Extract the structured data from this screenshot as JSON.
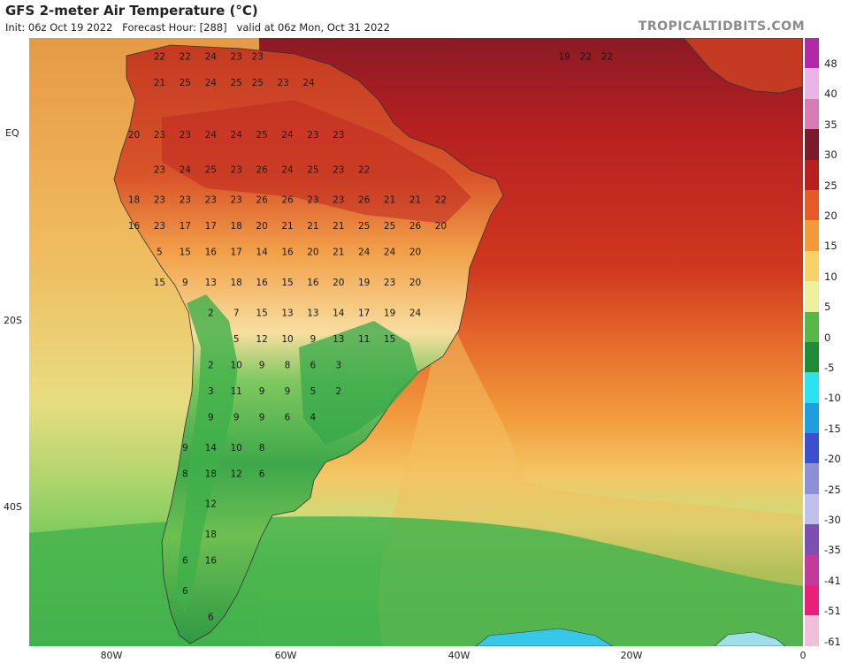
{
  "header": {
    "title": "GFS 2-meter Air Temperature (°C)",
    "subtitle": "Init: 06z Oct 19 2022   Forecast Hour: [288]   valid at 06z Mon, Oct 31 2022",
    "brand": "TROPICALTIDBITS.COM"
  },
  "axes": {
    "latitude_labels": [
      "EQ",
      "20S",
      "40S"
    ],
    "longitude_labels": [
      "80W",
      "60W",
      "40W",
      "20W",
      "0"
    ]
  },
  "colorbar": {
    "unit": "°C",
    "labels": [
      "48",
      "40",
      "35",
      "30",
      "25",
      "20",
      "15",
      "10",
      "5",
      "0",
      "-5",
      "-10",
      "-15",
      "-20",
      "-25",
      "-30",
      "-35",
      "-41",
      "-51",
      "-61"
    ],
    "colors": [
      "#b02aa8",
      "#e8b6e6",
      "#d77cb4",
      "#7a1a2a",
      "#b82020",
      "#e55a25",
      "#f39a3a",
      "#f6d26a",
      "#eef0a0",
      "#56b84a",
      "#1f8c3a",
      "#2be3f0",
      "#1e9ee0",
      "#3b4fcf",
      "#8f8fd8",
      "#c0c0ec",
      "#7d4fb0",
      "#c33a9a",
      "#e8207a",
      "#f0c0d8"
    ]
  },
  "chart_data": {
    "type": "map",
    "variable": "2-meter air temperature",
    "units": "°C",
    "station_values": [
      {
        "lon": -75.5,
        "lat": 10.5,
        "value": 22
      },
      {
        "lon": -72.5,
        "lat": 10.5,
        "value": 22
      },
      {
        "lon": -69.5,
        "lat": 10.5,
        "value": 24
      },
      {
        "lon": -66.5,
        "lat": 10.5,
        "value": 23
      },
      {
        "lon": -64,
        "lat": 10.5,
        "value": 23
      },
      {
        "lon": -75.5,
        "lat": 7.5,
        "value": 21
      },
      {
        "lon": -72.5,
        "lat": 7.5,
        "value": 25
      },
      {
        "lon": -69.5,
        "lat": 7.5,
        "value": 24
      },
      {
        "lon": -66.5,
        "lat": 7.5,
        "value": 25
      },
      {
        "lon": -64,
        "lat": 7.5,
        "value": 25
      },
      {
        "lon": -61,
        "lat": 7.5,
        "value": 23
      },
      {
        "lon": -58,
        "lat": 7.5,
        "value": 24
      },
      {
        "lon": -78.5,
        "lat": 1.5,
        "value": 20
      },
      {
        "lon": -75.5,
        "lat": 1.5,
        "value": 23
      },
      {
        "lon": -72.5,
        "lat": 1.5,
        "value": 23
      },
      {
        "lon": -69.5,
        "lat": 1.5,
        "value": 24
      },
      {
        "lon": -66.5,
        "lat": 1.5,
        "value": 24
      },
      {
        "lon": -63.5,
        "lat": 1.5,
        "value": 25
      },
      {
        "lon": -60.5,
        "lat": 1.5,
        "value": 24
      },
      {
        "lon": -57.5,
        "lat": 1.5,
        "value": 23
      },
      {
        "lon": -54.5,
        "lat": 1.5,
        "value": 23
      },
      {
        "lon": -75.5,
        "lat": -2.5,
        "value": 23
      },
      {
        "lon": -72.5,
        "lat": -2.5,
        "value": 24
      },
      {
        "lon": -69.5,
        "lat": -2.5,
        "value": 25
      },
      {
        "lon": -66.5,
        "lat": -2.5,
        "value": 23
      },
      {
        "lon": -63.5,
        "lat": -2.5,
        "value": 26
      },
      {
        "lon": -60.5,
        "lat": -2.5,
        "value": 24
      },
      {
        "lon": -57.5,
        "lat": -2.5,
        "value": 25
      },
      {
        "lon": -54.5,
        "lat": -2.5,
        "value": 23
      },
      {
        "lon": -51.5,
        "lat": -2.5,
        "value": 22
      },
      {
        "lon": -78.5,
        "lat": -6,
        "value": 18
      },
      {
        "lon": -75.5,
        "lat": -6,
        "value": 23
      },
      {
        "lon": -72.5,
        "lat": -6,
        "value": 23
      },
      {
        "lon": -69.5,
        "lat": -6,
        "value": 23
      },
      {
        "lon": -66.5,
        "lat": -6,
        "value": 23
      },
      {
        "lon": -63.5,
        "lat": -6,
        "value": 26
      },
      {
        "lon": -60.5,
        "lat": -6,
        "value": 26
      },
      {
        "lon": -57.5,
        "lat": -6,
        "value": 23
      },
      {
        "lon": -54.5,
        "lat": -6,
        "value": 23
      },
      {
        "lon": -51.5,
        "lat": -6,
        "value": 26
      },
      {
        "lon": -48.5,
        "lat": -6,
        "value": 21
      },
      {
        "lon": -45.5,
        "lat": -6,
        "value": 21
      },
      {
        "lon": -42.5,
        "lat": -6,
        "value": 22
      },
      {
        "lon": -78.5,
        "lat": -9,
        "value": 16
      },
      {
        "lon": -75.5,
        "lat": -9,
        "value": 23
      },
      {
        "lon": -72.5,
        "lat": -9,
        "value": 17
      },
      {
        "lon": -69.5,
        "lat": -9,
        "value": 17
      },
      {
        "lon": -66.5,
        "lat": -9,
        "value": 18
      },
      {
        "lon": -63.5,
        "lat": -9,
        "value": 20
      },
      {
        "lon": -60.5,
        "lat": -9,
        "value": 21
      },
      {
        "lon": -57.5,
        "lat": -9,
        "value": 21
      },
      {
        "lon": -54.5,
        "lat": -9,
        "value": 21
      },
      {
        "lon": -51.5,
        "lat": -9,
        "value": 25
      },
      {
        "lon": -48.5,
        "lat": -9,
        "value": 25
      },
      {
        "lon": -45.5,
        "lat": -9,
        "value": 26
      },
      {
        "lon": -42.5,
        "lat": -9,
        "value": 20
      },
      {
        "lon": -75.5,
        "lat": -12,
        "value": 5
      },
      {
        "lon": -72.5,
        "lat": -12,
        "value": 15
      },
      {
        "lon": -69.5,
        "lat": -12,
        "value": 16
      },
      {
        "lon": -66.5,
        "lat": -12,
        "value": 17
      },
      {
        "lon": -63.5,
        "lat": -12,
        "value": 14
      },
      {
        "lon": -60.5,
        "lat": -12,
        "value": 16
      },
      {
        "lon": -57.5,
        "lat": -12,
        "value": 20
      },
      {
        "lon": -54.5,
        "lat": -12,
        "value": 21
      },
      {
        "lon": -51.5,
        "lat": -12,
        "value": 24
      },
      {
        "lon": -48.5,
        "lat": -12,
        "value": 24
      },
      {
        "lon": -45.5,
        "lat": -12,
        "value": 20
      },
      {
        "lon": -75.5,
        "lat": -15.5,
        "value": 15
      },
      {
        "lon": -72.5,
        "lat": -15.5,
        "value": 9
      },
      {
        "lon": -69.5,
        "lat": -15.5,
        "value": 13
      },
      {
        "lon": -66.5,
        "lat": -15.5,
        "value": 18
      },
      {
        "lon": -63.5,
        "lat": -15.5,
        "value": 16
      },
      {
        "lon": -60.5,
        "lat": -15.5,
        "value": 15
      },
      {
        "lon": -57.5,
        "lat": -15.5,
        "value": 16
      },
      {
        "lon": -54.5,
        "lat": -15.5,
        "value": 20
      },
      {
        "lon": -51.5,
        "lat": -15.5,
        "value": 19
      },
      {
        "lon": -48.5,
        "lat": -15.5,
        "value": 23
      },
      {
        "lon": -45.5,
        "lat": -15.5,
        "value": 20
      },
      {
        "lon": -69.5,
        "lat": -19,
        "value": 2
      },
      {
        "lon": -66.5,
        "lat": -19,
        "value": 7
      },
      {
        "lon": -63.5,
        "lat": -19,
        "value": 15
      },
      {
        "lon": -60.5,
        "lat": -19,
        "value": 13
      },
      {
        "lon": -57.5,
        "lat": -19,
        "value": 13
      },
      {
        "lon": -54.5,
        "lat": -19,
        "value": 14
      },
      {
        "lon": -51.5,
        "lat": -19,
        "value": 17
      },
      {
        "lon": -48.5,
        "lat": -19,
        "value": 19
      },
      {
        "lon": -45.5,
        "lat": -19,
        "value": 24
      },
      {
        "lon": -66.5,
        "lat": -22,
        "value": 5
      },
      {
        "lon": -63.5,
        "lat": -22,
        "value": 12
      },
      {
        "lon": -60.5,
        "lat": -22,
        "value": 10
      },
      {
        "lon": -57.5,
        "lat": -22,
        "value": 9
      },
      {
        "lon": -54.5,
        "lat": -22,
        "value": 13
      },
      {
        "lon": -51.5,
        "lat": -22,
        "value": 11
      },
      {
        "lon": -48.5,
        "lat": -22,
        "value": 15
      },
      {
        "lon": -69.5,
        "lat": -25,
        "value": 2
      },
      {
        "lon": -66.5,
        "lat": -25,
        "value": 10
      },
      {
        "lon": -63.5,
        "lat": -25,
        "value": 9
      },
      {
        "lon": -60.5,
        "lat": -25,
        "value": 8
      },
      {
        "lon": -57.5,
        "lat": -25,
        "value": 6
      },
      {
        "lon": -54.5,
        "lat": -25,
        "value": 3
      },
      {
        "lon": -69.5,
        "lat": -28,
        "value": 3
      },
      {
        "lon": -66.5,
        "lat": -28,
        "value": 11
      },
      {
        "lon": -63.5,
        "lat": -28,
        "value": 9
      },
      {
        "lon": -60.5,
        "lat": -28,
        "value": 9
      },
      {
        "lon": -57.5,
        "lat": -28,
        "value": 5
      },
      {
        "lon": -54.5,
        "lat": -28,
        "value": 2
      },
      {
        "lon": -69.5,
        "lat": -31,
        "value": 9
      },
      {
        "lon": -66.5,
        "lat": -31,
        "value": 9
      },
      {
        "lon": -63.5,
        "lat": -31,
        "value": 9
      },
      {
        "lon": -60.5,
        "lat": -31,
        "value": 6
      },
      {
        "lon": -57.5,
        "lat": -31,
        "value": 4
      },
      {
        "lon": -72.5,
        "lat": -34.5,
        "value": 9
      },
      {
        "lon": -69.5,
        "lat": -34.5,
        "value": 14
      },
      {
        "lon": -66.5,
        "lat": -34.5,
        "value": 10
      },
      {
        "lon": -63.5,
        "lat": -34.5,
        "value": 8
      },
      {
        "lon": -72.5,
        "lat": -37.5,
        "value": 8
      },
      {
        "lon": -69.5,
        "lat": -37.5,
        "value": 18
      },
      {
        "lon": -66.5,
        "lat": -37.5,
        "value": 12
      },
      {
        "lon": -63.5,
        "lat": -37.5,
        "value": 6
      },
      {
        "lon": -69.5,
        "lat": -41,
        "value": 12
      },
      {
        "lon": -69.5,
        "lat": -44.5,
        "value": 18
      },
      {
        "lon": -72.5,
        "lat": -47.5,
        "value": 6
      },
      {
        "lon": -69.5,
        "lat": -47.5,
        "value": 16
      },
      {
        "lon": -72.5,
        "lat": -51,
        "value": 6
      },
      {
        "lon": -69.5,
        "lat": -54,
        "value": 6
      },
      {
        "lon": -28,
        "lat": 10.5,
        "value": 19
      },
      {
        "lon": -25.5,
        "lat": 10.5,
        "value": 22
      },
      {
        "lon": -23,
        "lat": 10.5,
        "value": 22
      }
    ]
  }
}
